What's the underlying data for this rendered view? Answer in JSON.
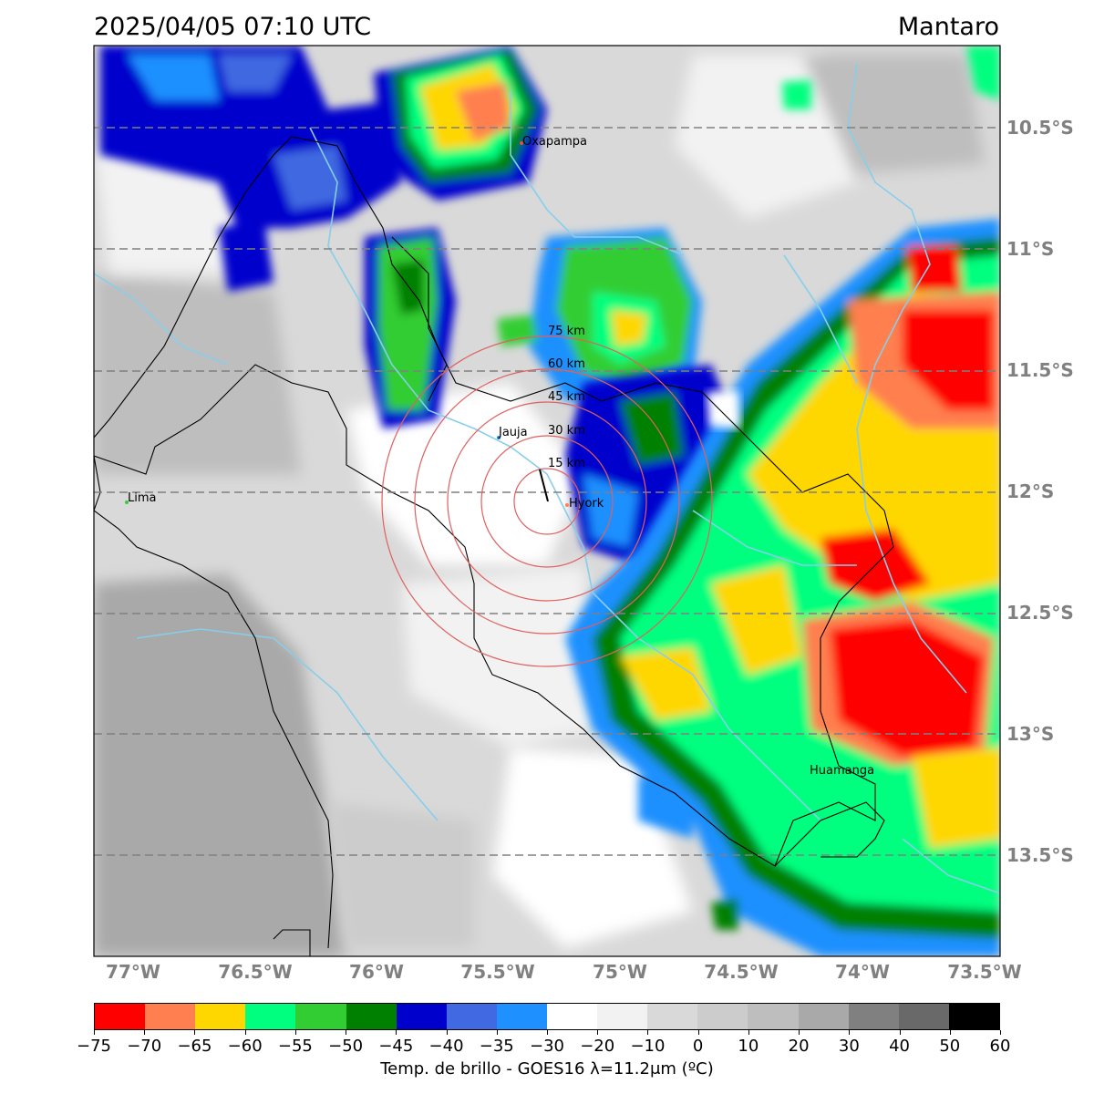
{
  "header": {
    "datetime": "2025/04/05 07:10 UTC",
    "region": "Mantaro"
  },
  "lat_labels": [
    "10.5°S",
    "11°S",
    "11.5°S",
    "12°S",
    "12.5°S",
    "13°S",
    "13.5°S"
  ],
  "lon_labels": [
    "77°W",
    "76.5°W",
    "76°W",
    "75.5°W",
    "75°W",
    "74.5°W",
    "74°W",
    "73.5°W"
  ],
  "places": {
    "oxapampa": "Oxapampa",
    "jauja": "Jauja",
    "huancayo": "Hyork",
    "lima": "Lima",
    "huamanga": "Huamanga"
  },
  "rings": [
    "15 km",
    "30 km",
    "45 km",
    "60 km",
    "75 km"
  ],
  "colorbar": {
    "colors": [
      "#ff0000",
      "#ff7f50",
      "#ffd700",
      "#00ff7f",
      "#32cd32",
      "#008000",
      "#0000cd",
      "#4169e1",
      "#1e90ff",
      "#ffffff",
      "#f2f2f2",
      "#d9d9d9",
      "#cccccc",
      "#bebebe",
      "#a9a9a9",
      "#808080",
      "#696969",
      "#000000"
    ],
    "ticks": [
      "−75",
      "−70",
      "−65",
      "−60",
      "−55",
      "−50",
      "−45",
      "−40",
      "−35",
      "−30",
      "−20",
      "−10",
      "0",
      "10",
      "20",
      "30",
      "40",
      "50",
      "60"
    ],
    "label": "Temp. de brillo - GOES16 λ=11.2μm (ºC)"
  }
}
